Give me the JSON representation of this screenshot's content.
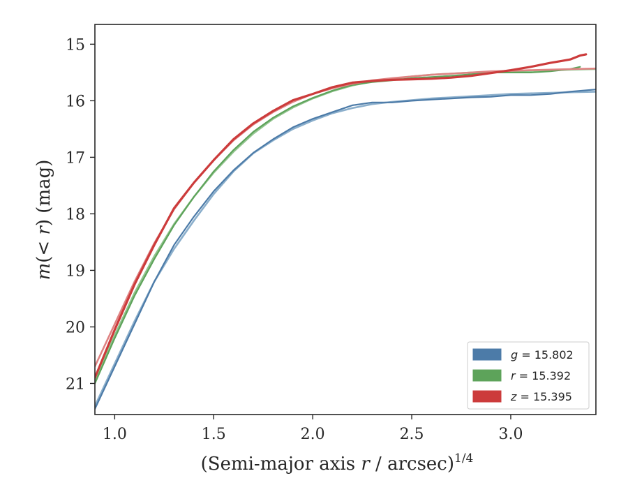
{
  "chart_data": {
    "type": "line",
    "xlabel": "(Semi-major axis r / arcsec)",
    "xlabel_parts": {
      "prefix": "(Semi-major axis ",
      "var": "r",
      "suffix": " / arcsec)",
      "exponent": "1/4"
    },
    "ylabel": "m(< r) (mag)",
    "ylabel_parts": {
      "m": "m",
      "open": "(",
      "lt": "< ",
      "r": "r",
      "close": ")",
      "unit": " (mag)"
    },
    "xlim": [
      0.9,
      3.43
    ],
    "ylim": [
      21.55,
      14.65
    ],
    "y_inverted": true,
    "xticks": [
      1.0,
      1.5,
      2.0,
      2.5,
      3.0
    ],
    "xtick_labels": [
      "1.0",
      "1.5",
      "2.0",
      "2.5",
      "3.0"
    ],
    "yticks": [
      15,
      16,
      17,
      18,
      19,
      20,
      21
    ],
    "ytick_labels": [
      "15",
      "16",
      "17",
      "18",
      "19",
      "20",
      "21"
    ],
    "grid": false,
    "legend_position": "lower-right",
    "series": [
      {
        "name": "g = 15.802",
        "legend_var": "g",
        "legend_value": "= 15.802",
        "color": "#4c7ba8",
        "model_color": "#8aaecb",
        "data": [
          [
            0.9,
            21.45
          ],
          [
            1.0,
            20.7
          ],
          [
            1.1,
            19.95
          ],
          [
            1.2,
            19.2
          ],
          [
            1.3,
            18.55
          ],
          [
            1.4,
            18.05
          ],
          [
            1.5,
            17.6
          ],
          [
            1.6,
            17.23
          ],
          [
            1.7,
            16.92
          ],
          [
            1.8,
            16.68
          ],
          [
            1.9,
            16.47
          ],
          [
            2.0,
            16.32
          ],
          [
            2.1,
            16.2
          ],
          [
            2.2,
            16.08
          ],
          [
            2.3,
            16.03
          ],
          [
            2.4,
            16.03
          ],
          [
            2.5,
            16.0
          ],
          [
            2.6,
            15.98
          ],
          [
            2.7,
            15.96
          ],
          [
            2.8,
            15.94
          ],
          [
            2.9,
            15.93
          ],
          [
            3.0,
            15.9
          ],
          [
            3.1,
            15.9
          ],
          [
            3.2,
            15.88
          ],
          [
            3.3,
            15.84
          ],
          [
            3.43,
            15.8
          ]
        ],
        "model": [
          [
            0.9,
            21.4
          ],
          [
            1.0,
            20.65
          ],
          [
            1.1,
            19.9
          ],
          [
            1.2,
            19.2
          ],
          [
            1.3,
            18.62
          ],
          [
            1.4,
            18.12
          ],
          [
            1.5,
            17.65
          ],
          [
            1.6,
            17.25
          ],
          [
            1.7,
            16.93
          ],
          [
            1.8,
            16.7
          ],
          [
            1.9,
            16.5
          ],
          [
            2.0,
            16.35
          ],
          [
            2.1,
            16.22
          ],
          [
            2.2,
            16.13
          ],
          [
            2.3,
            16.06
          ],
          [
            2.4,
            16.02
          ],
          [
            2.5,
            15.99
          ],
          [
            2.6,
            15.96
          ],
          [
            2.7,
            15.94
          ],
          [
            2.8,
            15.92
          ],
          [
            2.9,
            15.9
          ],
          [
            3.0,
            15.88
          ],
          [
            3.1,
            15.87
          ],
          [
            3.2,
            15.86
          ],
          [
            3.3,
            15.85
          ],
          [
            3.43,
            15.84
          ]
        ]
      },
      {
        "name": "r = 15.392",
        "legend_var": "r",
        "legend_value": "= 15.392",
        "color": "#5da35a",
        "model_color": "#92c48e",
        "data": [
          [
            0.9,
            21.0
          ],
          [
            1.0,
            20.2
          ],
          [
            1.1,
            19.45
          ],
          [
            1.2,
            18.8
          ],
          [
            1.3,
            18.2
          ],
          [
            1.4,
            17.7
          ],
          [
            1.5,
            17.25
          ],
          [
            1.6,
            16.87
          ],
          [
            1.7,
            16.55
          ],
          [
            1.8,
            16.3
          ],
          [
            1.9,
            16.1
          ],
          [
            2.0,
            15.95
          ],
          [
            2.1,
            15.82
          ],
          [
            2.2,
            15.72
          ],
          [
            2.3,
            15.67
          ],
          [
            2.4,
            15.64
          ],
          [
            2.5,
            15.6
          ],
          [
            2.6,
            15.58
          ],
          [
            2.7,
            15.56
          ],
          [
            2.8,
            15.53
          ],
          [
            2.9,
            15.5
          ],
          [
            3.0,
            15.5
          ],
          [
            3.1,
            15.5
          ],
          [
            3.2,
            15.48
          ],
          [
            3.3,
            15.44
          ],
          [
            3.35,
            15.4
          ]
        ],
        "model": [
          [
            0.9,
            20.95
          ],
          [
            1.0,
            20.15
          ],
          [
            1.1,
            19.4
          ],
          [
            1.2,
            18.75
          ],
          [
            1.3,
            18.18
          ],
          [
            1.4,
            17.7
          ],
          [
            1.5,
            17.27
          ],
          [
            1.6,
            16.9
          ],
          [
            1.7,
            16.58
          ],
          [
            1.8,
            16.32
          ],
          [
            1.9,
            16.12
          ],
          [
            2.0,
            15.96
          ],
          [
            2.1,
            15.83
          ],
          [
            2.2,
            15.73
          ],
          [
            2.3,
            15.66
          ],
          [
            2.4,
            15.61
          ],
          [
            2.5,
            15.57
          ],
          [
            2.6,
            15.54
          ],
          [
            2.7,
            15.52
          ],
          [
            2.8,
            15.5
          ],
          [
            2.9,
            15.49
          ],
          [
            3.0,
            15.48
          ],
          [
            3.1,
            15.47
          ],
          [
            3.2,
            15.46
          ],
          [
            3.3,
            15.45
          ],
          [
            3.43,
            15.44
          ]
        ]
      },
      {
        "name": "z = 15.395",
        "legend_var": "z",
        "legend_value": "= 15.395",
        "color": "#cc3b3b",
        "model_color": "#df8383",
        "data": [
          [
            0.9,
            20.9
          ],
          [
            1.0,
            20.05
          ],
          [
            1.1,
            19.25
          ],
          [
            1.2,
            18.55
          ],
          [
            1.3,
            17.9
          ],
          [
            1.4,
            17.45
          ],
          [
            1.5,
            17.05
          ],
          [
            1.6,
            16.68
          ],
          [
            1.7,
            16.4
          ],
          [
            1.8,
            16.18
          ],
          [
            1.9,
            15.99
          ],
          [
            2.0,
            15.88
          ],
          [
            2.1,
            15.76
          ],
          [
            2.2,
            15.68
          ],
          [
            2.3,
            15.65
          ],
          [
            2.4,
            15.63
          ],
          [
            2.5,
            15.62
          ],
          [
            2.6,
            15.61
          ],
          [
            2.7,
            15.59
          ],
          [
            2.8,
            15.56
          ],
          [
            2.9,
            15.51
          ],
          [
            3.0,
            15.46
          ],
          [
            3.1,
            15.4
          ],
          [
            3.2,
            15.33
          ],
          [
            3.25,
            15.3
          ],
          [
            3.3,
            15.27
          ],
          [
            3.35,
            15.2
          ],
          [
            3.38,
            15.18
          ]
        ],
        "model": [
          [
            0.9,
            20.7
          ],
          [
            1.0,
            19.95
          ],
          [
            1.1,
            19.2
          ],
          [
            1.2,
            18.52
          ],
          [
            1.3,
            17.92
          ],
          [
            1.4,
            17.45
          ],
          [
            1.5,
            17.05
          ],
          [
            1.6,
            16.7
          ],
          [
            1.7,
            16.42
          ],
          [
            1.8,
            16.2
          ],
          [
            1.9,
            16.02
          ],
          [
            2.0,
            15.88
          ],
          [
            2.1,
            15.78
          ],
          [
            2.2,
            15.7
          ],
          [
            2.3,
            15.64
          ],
          [
            2.4,
            15.6
          ],
          [
            2.5,
            15.57
          ],
          [
            2.6,
            15.54
          ],
          [
            2.7,
            15.52
          ],
          [
            2.8,
            15.5
          ],
          [
            2.9,
            15.48
          ],
          [
            3.0,
            15.47
          ],
          [
            3.1,
            15.46
          ],
          [
            3.2,
            15.45
          ],
          [
            3.3,
            15.44
          ],
          [
            3.43,
            15.43
          ]
        ]
      }
    ]
  }
}
